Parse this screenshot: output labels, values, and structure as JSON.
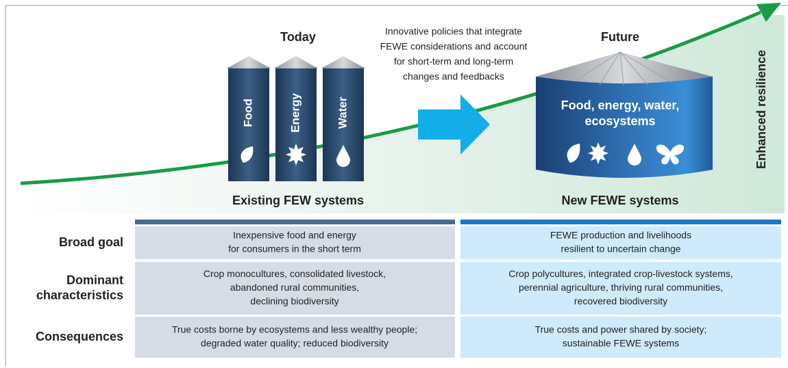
{
  "header": {
    "today": "Today",
    "future": "Future",
    "policy_note": [
      "Innovative policies that integrate",
      "FEWE considerations and account",
      "for short-term and long-term",
      "changes and feedbacks"
    ],
    "resilience": "Enhanced resilience",
    "existing": "Existing FEW systems",
    "new": "New FEWE systems"
  },
  "silos": [
    "Food",
    "Energy",
    "Water"
  ],
  "tank_label": [
    "Food, energy, water,",
    "ecosystems"
  ],
  "table": {
    "rows": [
      {
        "label": [
          "Broad goal"
        ],
        "existing": [
          "Inexpensive food and energy",
          "for consumers in the short term"
        ],
        "new": [
          "FEWE production and livelihoods",
          "resilient to uncertain change"
        ]
      },
      {
        "label": [
          "Dominant",
          "characteristics"
        ],
        "existing": [
          "Crop monocultures, consolidated livestock,",
          "abandoned rural communities,",
          "declining biodiversity"
        ],
        "new": [
          "Crop polycultures, integrated crop-livestock systems,",
          "perennial agriculture, thriving rural communities,",
          "recovered biodiversity"
        ]
      },
      {
        "label": [
          "Consequences"
        ],
        "existing": [
          "True costs borne by ecosystems and less wealthy people;",
          "degraded water quality; reduced biodiversity"
        ],
        "new": [
          "True costs and power shared by society;",
          "sustainable FEWE systems"
        ]
      }
    ]
  }
}
